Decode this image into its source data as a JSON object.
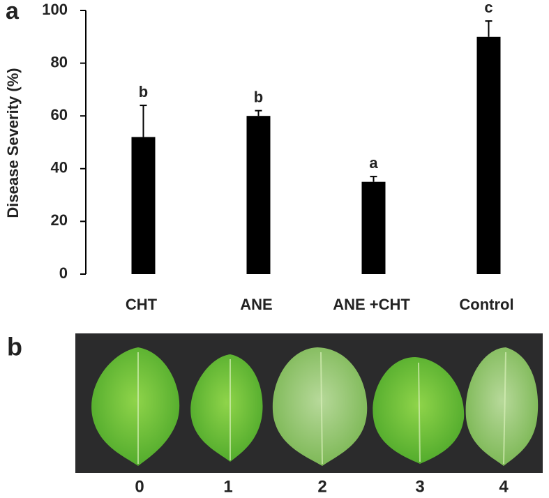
{
  "chart_data": {
    "type": "bar",
    "panel_label": "a",
    "ylabel": "Disease Severity (%)",
    "categories": [
      "CHT",
      "ANE",
      "ANE +CHT",
      "Control"
    ],
    "values": [
      52,
      60,
      35,
      90
    ],
    "errors": [
      12,
      2,
      2,
      6
    ],
    "letters": [
      "b",
      "b",
      "a",
      "c"
    ],
    "color": "#000000",
    "ylim": [
      0,
      100
    ],
    "yticks": [
      0,
      20,
      40,
      60,
      80,
      100
    ]
  },
  "photo_panel": {
    "label": "b",
    "leaf_labels": [
      "0",
      "1",
      "2",
      "3",
      "4"
    ]
  }
}
